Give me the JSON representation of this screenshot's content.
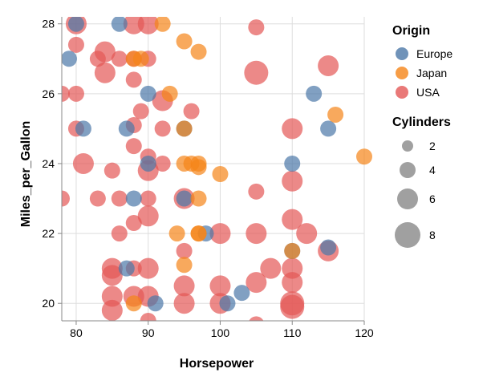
{
  "chart_data": {
    "type": "scatter",
    "xlabel": "Horsepower",
    "ylabel": "Miles_per_Gallon",
    "xlim": [
      78,
      120
    ],
    "ylim": [
      19.5,
      28.2
    ],
    "x_ticks": [
      80,
      90,
      100,
      110,
      120
    ],
    "y_ticks": [
      20,
      22,
      24,
      26,
      28
    ],
    "grid": true,
    "legend_placement": "right",
    "color_legend": {
      "title": "Origin",
      "items": [
        {
          "label": "Europe",
          "color": "#4c78a8"
        },
        {
          "label": "Japan",
          "color": "#f58518"
        },
        {
          "label": "USA",
          "color": "#e45756"
        }
      ]
    },
    "size_legend": {
      "title": "Cylinders",
      "items": [
        {
          "label": "2",
          "value": 2
        },
        {
          "label": "4",
          "value": 4
        },
        {
          "label": "6",
          "value": 6
        },
        {
          "label": "8",
          "value": 8
        }
      ]
    },
    "series": [
      {
        "name": "Europe",
        "color": "#4c78a8",
        "points": [
          [
            80,
            28,
            4
          ],
          [
            86,
            28,
            4
          ],
          [
            79,
            27,
            4
          ],
          [
            81,
            25,
            4
          ],
          [
            87,
            25,
            4
          ],
          [
            90,
            26,
            4
          ],
          [
            88,
            23,
            4
          ],
          [
            95,
            23,
            4
          ],
          [
            95,
            25,
            4
          ],
          [
            98,
            22,
            4
          ],
          [
            87,
            21,
            4
          ],
          [
            91,
            20,
            4
          ],
          [
            101,
            20,
            4
          ],
          [
            103,
            20.3,
            4
          ],
          [
            110,
            24,
            4
          ],
          [
            113,
            26,
            4
          ],
          [
            115,
            25,
            4
          ],
          [
            115,
            21.6,
            4
          ],
          [
            110,
            21.5,
            4
          ],
          [
            90,
            24,
            4
          ]
        ]
      },
      {
        "name": "Japan",
        "color": "#f58518",
        "points": [
          [
            92,
            28,
            4
          ],
          [
            95,
            27.5,
            4
          ],
          [
            97,
            27.2,
            4
          ],
          [
            88,
            27,
            4
          ],
          [
            89,
            27,
            4
          ],
          [
            93,
            26,
            4
          ],
          [
            95,
            25,
            4
          ],
          [
            95,
            24,
            4
          ],
          [
            96,
            24,
            4
          ],
          [
            97,
            24,
            4
          ],
          [
            97,
            23.9,
            4
          ],
          [
            100,
            23.7,
            4
          ],
          [
            97,
            23,
            4
          ],
          [
            94,
            22,
            4
          ],
          [
            97,
            22,
            4
          ],
          [
            95,
            21.1,
            4
          ],
          [
            88,
            20,
            4
          ],
          [
            116,
            25.4,
            4
          ],
          [
            120,
            24.2,
            4
          ],
          [
            110,
            21.5,
            4
          ],
          [
            97,
            22,
            4
          ]
        ]
      },
      {
        "name": "USA",
        "color": "#e45756",
        "points": [
          [
            80,
            28,
            6
          ],
          [
            88,
            28,
            6
          ],
          [
            90,
            28,
            6
          ],
          [
            105,
            27.9,
            4
          ],
          [
            80,
            27.4,
            4
          ],
          [
            83,
            27,
            4
          ],
          [
            84,
            27.2,
            6
          ],
          [
            86,
            27,
            4
          ],
          [
            88,
            27,
            4
          ],
          [
            90,
            27,
            4
          ],
          [
            84,
            26.6,
            6
          ],
          [
            88,
            26.4,
            4
          ],
          [
            105,
            26.6,
            8
          ],
          [
            115,
            26.8,
            6
          ],
          [
            78,
            26,
            4
          ],
          [
            80,
            26,
            4
          ],
          [
            89,
            25.5,
            4
          ],
          [
            92,
            25.8,
            6
          ],
          [
            96,
            25.5,
            4
          ],
          [
            80,
            25,
            4
          ],
          [
            88,
            25.1,
            4
          ],
          [
            92,
            25,
            4
          ],
          [
            110,
            25,
            6
          ],
          [
            88,
            24.5,
            4
          ],
          [
            90,
            24.2,
            4
          ],
          [
            81,
            24,
            6
          ],
          [
            85,
            23.8,
            4
          ],
          [
            90,
            23.8,
            6
          ],
          [
            92,
            24,
            4
          ],
          [
            78,
            23,
            4
          ],
          [
            83,
            23,
            4
          ],
          [
            86,
            23,
            4
          ],
          [
            90,
            23,
            4
          ],
          [
            95,
            23,
            6
          ],
          [
            105,
            23.2,
            4
          ],
          [
            110,
            23.5,
            6
          ],
          [
            86,
            22,
            4
          ],
          [
            88,
            22.3,
            4
          ],
          [
            90,
            22.5,
            6
          ],
          [
            100,
            22,
            6
          ],
          [
            105,
            22,
            6
          ],
          [
            110,
            22.4,
            6
          ],
          [
            112,
            22,
            6
          ],
          [
            85,
            21,
            6
          ],
          [
            85,
            20.8,
            6
          ],
          [
            88,
            21,
            4
          ],
          [
            90,
            21,
            6
          ],
          [
            95,
            21.5,
            4
          ],
          [
            95,
            20.5,
            6
          ],
          [
            100,
            20.5,
            6
          ],
          [
            105,
            20.6,
            6
          ],
          [
            107,
            21,
            6
          ],
          [
            110,
            21,
            6
          ],
          [
            110,
            20.6,
            6
          ],
          [
            115,
            21.5,
            6
          ],
          [
            85,
            20.2,
            6
          ],
          [
            85,
            19.8,
            6
          ],
          [
            88,
            20.2,
            6
          ],
          [
            90,
            20.2,
            6
          ],
          [
            90,
            19.5,
            4
          ],
          [
            95,
            20,
            6
          ],
          [
            100,
            20,
            6
          ],
          [
            110,
            20,
            8
          ],
          [
            110,
            19.9,
            8
          ],
          [
            105,
            19.4,
            4
          ]
        ]
      }
    ]
  }
}
